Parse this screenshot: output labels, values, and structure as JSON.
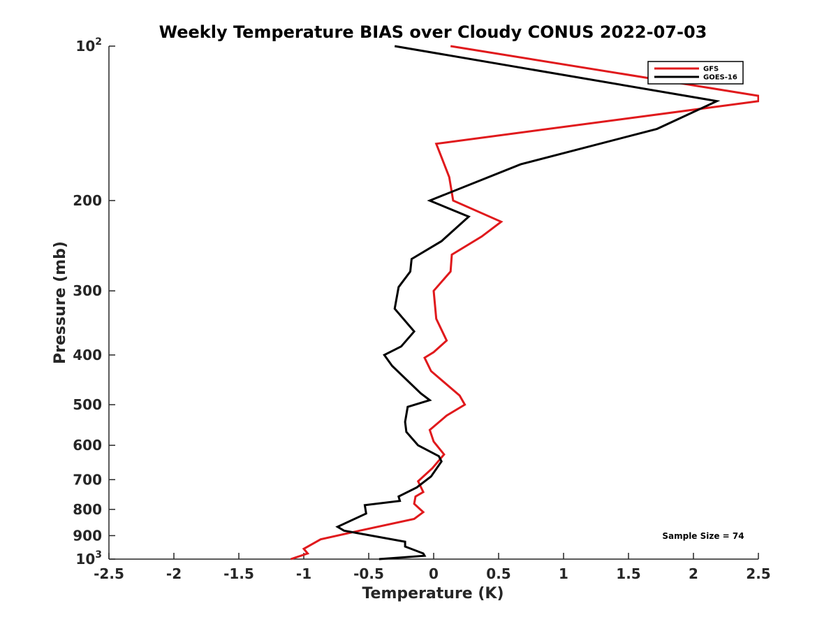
{
  "chart_data": {
    "type": "line",
    "title": "Weekly Temperature BIAS over Cloudy CONUS 2022-07-03",
    "xlabel": "Temperature (K)",
    "ylabel": "Pressure (mb)",
    "xlim": [
      -2.5,
      2.5
    ],
    "ylim": [
      1000,
      100
    ],
    "y_scale": "log",
    "y_reversed": true,
    "grid": false,
    "legend_position": "top-right",
    "x_ticks": [
      {
        "value": -2.5,
        "label": "-2.5"
      },
      {
        "value": -2,
        "label": "-2"
      },
      {
        "value": -1.5,
        "label": "-1.5"
      },
      {
        "value": -1,
        "label": "-1"
      },
      {
        "value": -0.5,
        "label": "-0.5"
      },
      {
        "value": 0,
        "label": "0"
      },
      {
        "value": 0.5,
        "label": "0.5"
      },
      {
        "value": 1,
        "label": "1"
      },
      {
        "value": 1.5,
        "label": "1.5"
      },
      {
        "value": 2,
        "label": "2"
      },
      {
        "value": 2.5,
        "label": "2.5"
      }
    ],
    "y_ticks": [
      {
        "value": 100,
        "base": "10",
        "exp": "2"
      },
      {
        "value": 200,
        "label": "200"
      },
      {
        "value": 300,
        "label": "300"
      },
      {
        "value": 400,
        "label": "400"
      },
      {
        "value": 500,
        "label": "500"
      },
      {
        "value": 600,
        "label": "600"
      },
      {
        "value": 700,
        "label": "700"
      },
      {
        "value": 800,
        "label": "800"
      },
      {
        "value": 900,
        "label": "900"
      },
      {
        "value": 1000,
        "base": "10",
        "exp": "3"
      }
    ],
    "series": [
      {
        "name": "GFS",
        "color": "#e0191c",
        "points": [
          [
            0.13,
            100
          ],
          [
            2.5,
            125
          ],
          [
            2.5,
            128
          ],
          [
            0.02,
            155
          ],
          [
            0.12,
            180
          ],
          [
            0.15,
            200
          ],
          [
            0.52,
            220
          ],
          [
            0.37,
            235
          ],
          [
            0.14,
            255
          ],
          [
            0.13,
            275
          ],
          [
            0.0,
            300
          ],
          [
            0.02,
            340
          ],
          [
            0.1,
            375
          ],
          [
            0.0,
            395
          ],
          [
            -0.07,
            405
          ],
          [
            -0.02,
            430
          ],
          [
            0.2,
            480
          ],
          [
            0.24,
            500
          ],
          [
            0.1,
            525
          ],
          [
            -0.03,
            560
          ],
          [
            0.0,
            590
          ],
          [
            0.08,
            625
          ],
          [
            -0.01,
            665
          ],
          [
            -0.12,
            705
          ],
          [
            -0.08,
            740
          ],
          [
            -0.14,
            755
          ],
          [
            -0.15,
            780
          ],
          [
            -0.08,
            810
          ],
          [
            -0.15,
            835
          ],
          [
            -0.57,
            880
          ],
          [
            -0.87,
            915
          ],
          [
            -1.0,
            955
          ],
          [
            -0.97,
            975
          ],
          [
            -1.1,
            1000
          ]
        ]
      },
      {
        "name": "GOES-16",
        "color": "#000000",
        "points": [
          [
            -0.3,
            100
          ],
          [
            2.18,
            128
          ],
          [
            1.72,
            145
          ],
          [
            0.67,
            170
          ],
          [
            -0.03,
            200
          ],
          [
            0.27,
            215
          ],
          [
            0.06,
            240
          ],
          [
            -0.17,
            260
          ],
          [
            -0.18,
            275
          ],
          [
            -0.27,
            295
          ],
          [
            -0.3,
            325
          ],
          [
            -0.15,
            360
          ],
          [
            -0.25,
            385
          ],
          [
            -0.38,
            400
          ],
          [
            -0.32,
            420
          ],
          [
            -0.1,
            475
          ],
          [
            -0.03,
            490
          ],
          [
            -0.2,
            505
          ],
          [
            -0.22,
            540
          ],
          [
            -0.21,
            565
          ],
          [
            -0.12,
            600
          ],
          [
            0.04,
            630
          ],
          [
            0.06,
            645
          ],
          [
            -0.02,
            690
          ],
          [
            -0.13,
            725
          ],
          [
            -0.27,
            755
          ],
          [
            -0.26,
            770
          ],
          [
            -0.53,
            785
          ],
          [
            -0.52,
            815
          ],
          [
            -0.74,
            865
          ],
          [
            -0.69,
            880
          ],
          [
            -0.22,
            925
          ],
          [
            -0.22,
            945
          ],
          [
            -0.08,
            975
          ],
          [
            -0.07,
            985
          ],
          [
            -0.42,
            1000
          ]
        ]
      }
    ],
    "annotation": "Sample Size = 74"
  }
}
